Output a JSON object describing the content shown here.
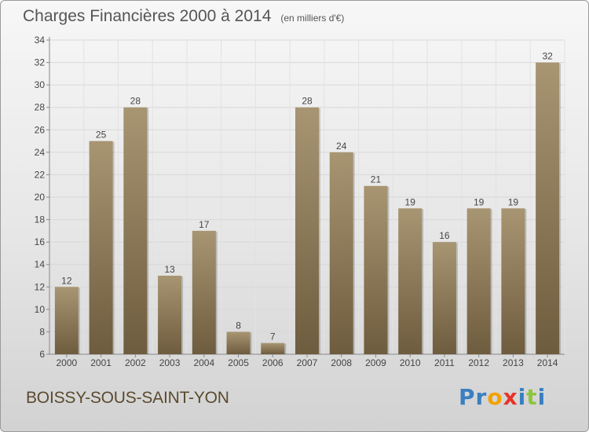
{
  "header": {
    "title": "Charges Financières 2000 à 2014",
    "unit": "(en milliers d'€)"
  },
  "footer": {
    "commune": "BOISSY-SOUS-SAINT-YON",
    "logo_letters": [
      {
        "char": "P",
        "color": "#3a7fc1"
      },
      {
        "char": "r",
        "color": "#3a7fc1"
      },
      {
        "char": "o",
        "color": "#f2a100"
      },
      {
        "char": "x",
        "color": "#e8332a"
      },
      {
        "char": "i",
        "color": "#3a7fc1"
      },
      {
        "char": "t",
        "color": "#8cc63f"
      },
      {
        "char": "i",
        "color": "#3a7fc1"
      }
    ]
  },
  "chart_data": {
    "type": "bar",
    "categories": [
      "2000",
      "2001",
      "2002",
      "2003",
      "2004",
      "2005",
      "2006",
      "2007",
      "2008",
      "2009",
      "2010",
      "2011",
      "2012",
      "2013",
      "2014"
    ],
    "values": [
      12,
      25,
      28,
      13,
      17,
      8,
      7,
      28,
      24,
      21,
      19,
      16,
      19,
      19,
      32
    ],
    "ylim": [
      6,
      34
    ],
    "yticks": [
      6,
      8,
      10,
      12,
      14,
      16,
      18,
      20,
      22,
      24,
      26,
      28,
      30,
      32,
      34
    ],
    "grid": true,
    "bar_color_top": "#a89572",
    "bar_color_bottom": "#6e5c3e"
  }
}
